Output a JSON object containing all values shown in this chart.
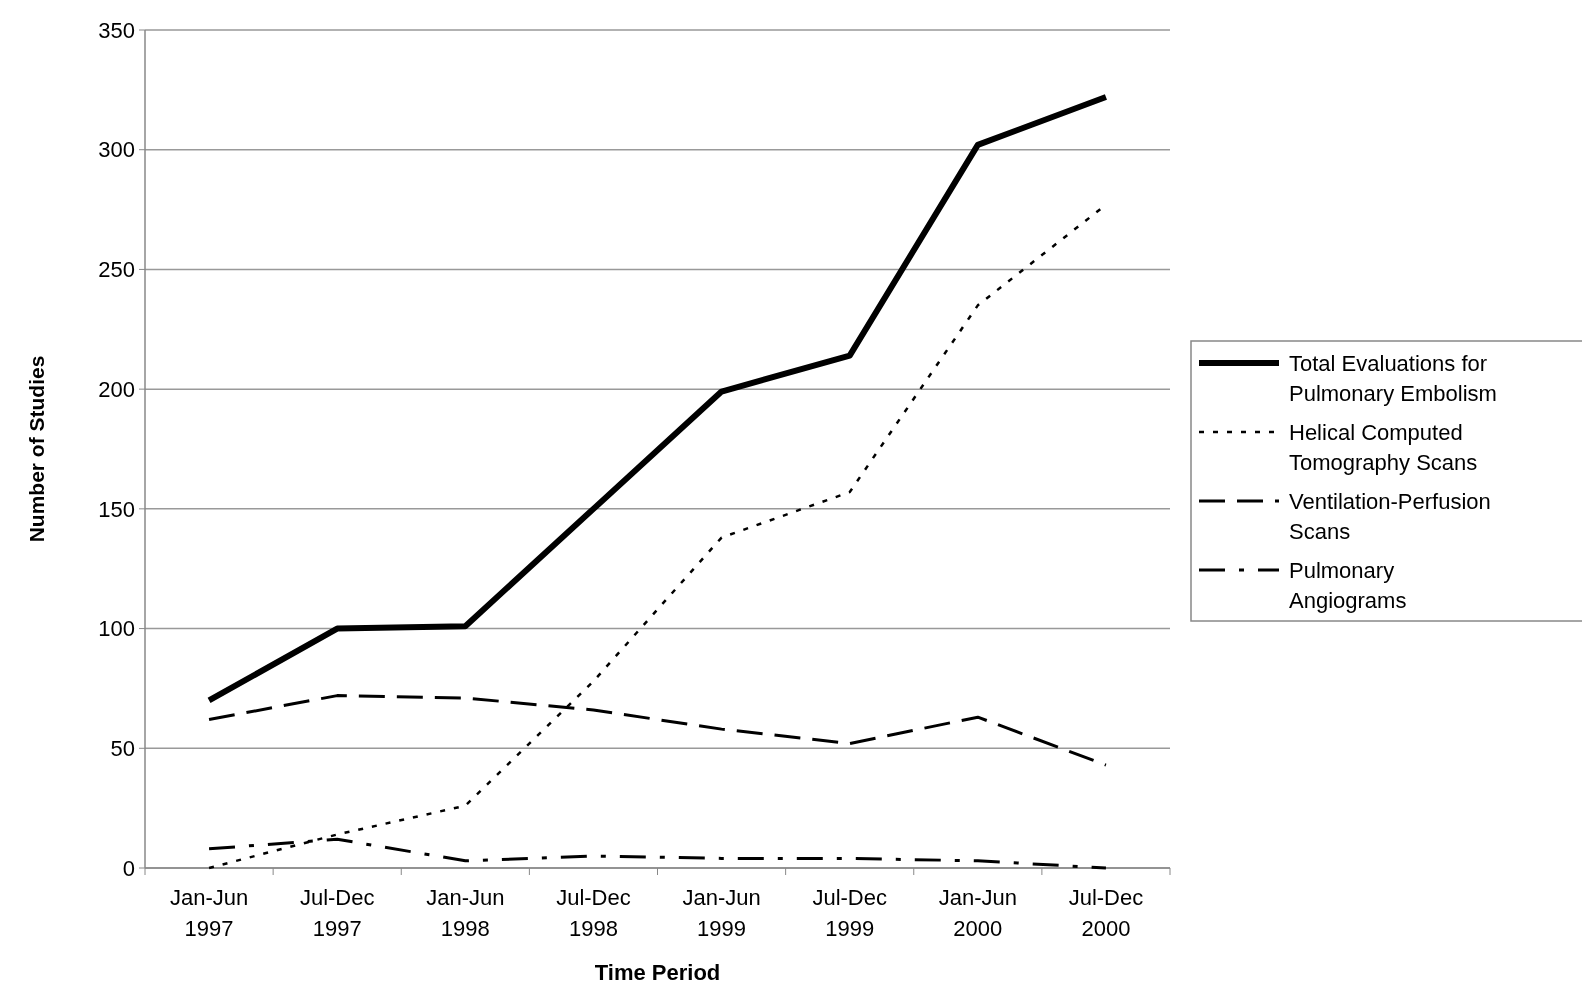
{
  "chart_data": {
    "type": "line",
    "xlabel": "Time Period",
    "ylabel": "Number of Studies",
    "categories": [
      "Jan-Jun 1997",
      "Jul-Dec 1997",
      "Jan-Jun 1998",
      "Jul-Dec 1998",
      "Jan-Jun 1999",
      "Jul-Dec 1999",
      "Jan-Jun 2000",
      "Jul-Dec 2000"
    ],
    "series": [
      {
        "name": "Total Evaluations for Pulmonary Embolism",
        "color": "#000000",
        "line_style": "solid",
        "values": [
          70,
          100,
          101,
          150,
          199,
          214,
          302,
          322
        ]
      },
      {
        "name": "Helical Computed Tomography Scans",
        "color": "#000000",
        "line_style": "dotted",
        "values": [
          0,
          14,
          26,
          78,
          138,
          157,
          235,
          277
        ]
      },
      {
        "name": "Ventilation-Perfusion Scans",
        "color": "#000000",
        "line_style": "dashed",
        "values": [
          62,
          72,
          71,
          66,
          58,
          52,
          63,
          43
        ]
      },
      {
        "name": "Pulmonary Angiograms",
        "color": "#000000",
        "line_style": "dashdot",
        "values": [
          8,
          12,
          3,
          5,
          4,
          4,
          3,
          0
        ]
      }
    ],
    "ylim": [
      0,
      350
    ],
    "yticks": [
      0,
      50,
      100,
      150,
      200,
      250,
      300,
      350
    ],
    "grid": "y",
    "legend": "right",
    "marker": "none"
  }
}
